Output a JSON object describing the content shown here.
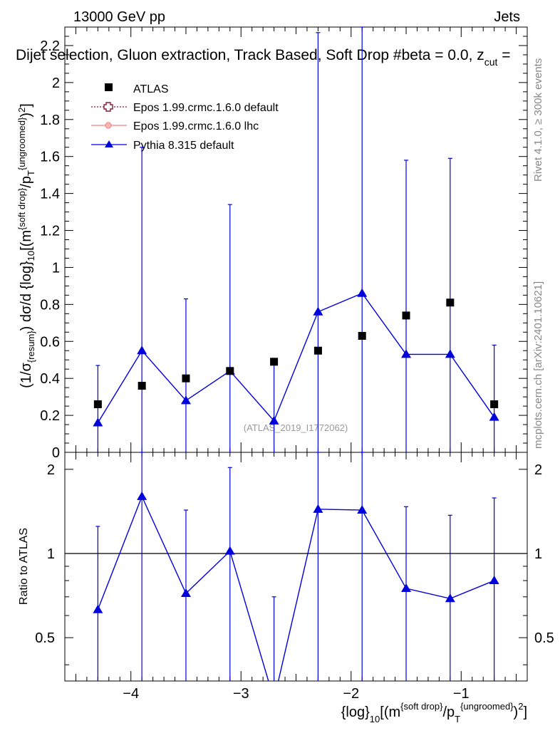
{
  "header": {
    "energy_label": "13000 GeV pp",
    "category_label": "Jets",
    "title": "Dijet selection, Gluon extraction, Track Based, Soft Drop #beta = 0.0, z",
    "title_sub": "cut",
    "title_tail": " = ",
    "side_label_top": "Rivet 4.1.0, ≥ 300k events",
    "side_label_bottom": "mcplots.cern.ch [arXiv:2401.10621]",
    "watermark": "(ATLAS_2019_I1772062)"
  },
  "legend": [
    {
      "name": "ATLAS",
      "color": "#000000",
      "marker": "square"
    },
    {
      "name": "Epos 1.99.crmc.1.6.0 default",
      "color": "#8b1a3a",
      "marker": "open-cross"
    },
    {
      "name": "Epos 1.99.crmc.1.6.0 lhc",
      "color": "#f08080",
      "marker": "small-cross"
    },
    {
      "name": "Pythia 8.315 default",
      "color": "#0000dd",
      "marker": "triangle"
    }
  ],
  "axis_text": {
    "ylabel_main": "(1/σ{resum}) dσ/d {log}10[(m{soft drop}/pT{ungroomed})2]",
    "ylabel_ratio": "Ratio to ATLAS",
    "xlabel": "{log}10[(m{soft drop}/pT{ungroomed})2]"
  },
  "chart_data": {
    "type": "scatter",
    "x": [
      -4.3,
      -3.9,
      -3.5,
      -3.1,
      -2.7,
      -2.3,
      -1.9,
      -1.5,
      -1.1,
      -0.7
    ],
    "xlim": [
      -4.6,
      -0.4
    ],
    "xticks": [
      -4,
      -3,
      -2,
      -1
    ],
    "xtick_labels": [
      "−4",
      "−3",
      "−2",
      "−1"
    ],
    "main": {
      "ylim": [
        0,
        2.3
      ],
      "yticks": [
        0,
        0.2,
        0.4,
        0.6,
        0.8,
        1,
        1.2,
        1.4,
        1.6,
        1.8,
        2,
        2.2
      ],
      "ytick_labels": [
        "0",
        "0.2",
        "0.4",
        "0.6",
        "0.8",
        "1",
        "1.2",
        "1.4",
        "1.6",
        "1.8",
        "2",
        "2.2"
      ],
      "series": [
        {
          "name": "ATLAS",
          "values": [
            0.26,
            0.36,
            0.4,
            0.44,
            0.49,
            0.55,
            0.63,
            0.74,
            0.81,
            0.26
          ]
        },
        {
          "name": "Pythia 8.315 default",
          "values": [
            0.16,
            0.55,
            0.28,
            0.44,
            0.17,
            0.76,
            0.86,
            0.53,
            0.53,
            0.19
          ],
          "err_low": [
            0.16,
            0.55,
            0.28,
            0.44,
            0.17,
            0.76,
            0.86,
            0.53,
            0.53,
            0.19
          ],
          "err_high": [
            0.31,
            1.1,
            0.55,
            0.9,
            0.33,
            1.51,
            1.72,
            1.05,
            1.06,
            0.39
          ]
        }
      ]
    },
    "ratio": {
      "ylim": [
        0.35,
        2.3
      ],
      "yticks": [
        0.5,
        1,
        2
      ],
      "ytick_labels": [
        "0.5",
        "1",
        "2"
      ],
      "reference": 1,
      "series": [
        {
          "name": "Pythia 8.315 default",
          "values": [
            0.63,
            1.6,
            0.72,
            1.02,
            0.3,
            1.44,
            1.43,
            0.75,
            0.69,
            0.8
          ],
          "err_high": [
            1.25,
            2.3,
            1.43,
            2.03,
            0.7,
            2.3,
            2.3,
            1.47,
            1.37,
            1.58
          ]
        }
      ]
    }
  }
}
